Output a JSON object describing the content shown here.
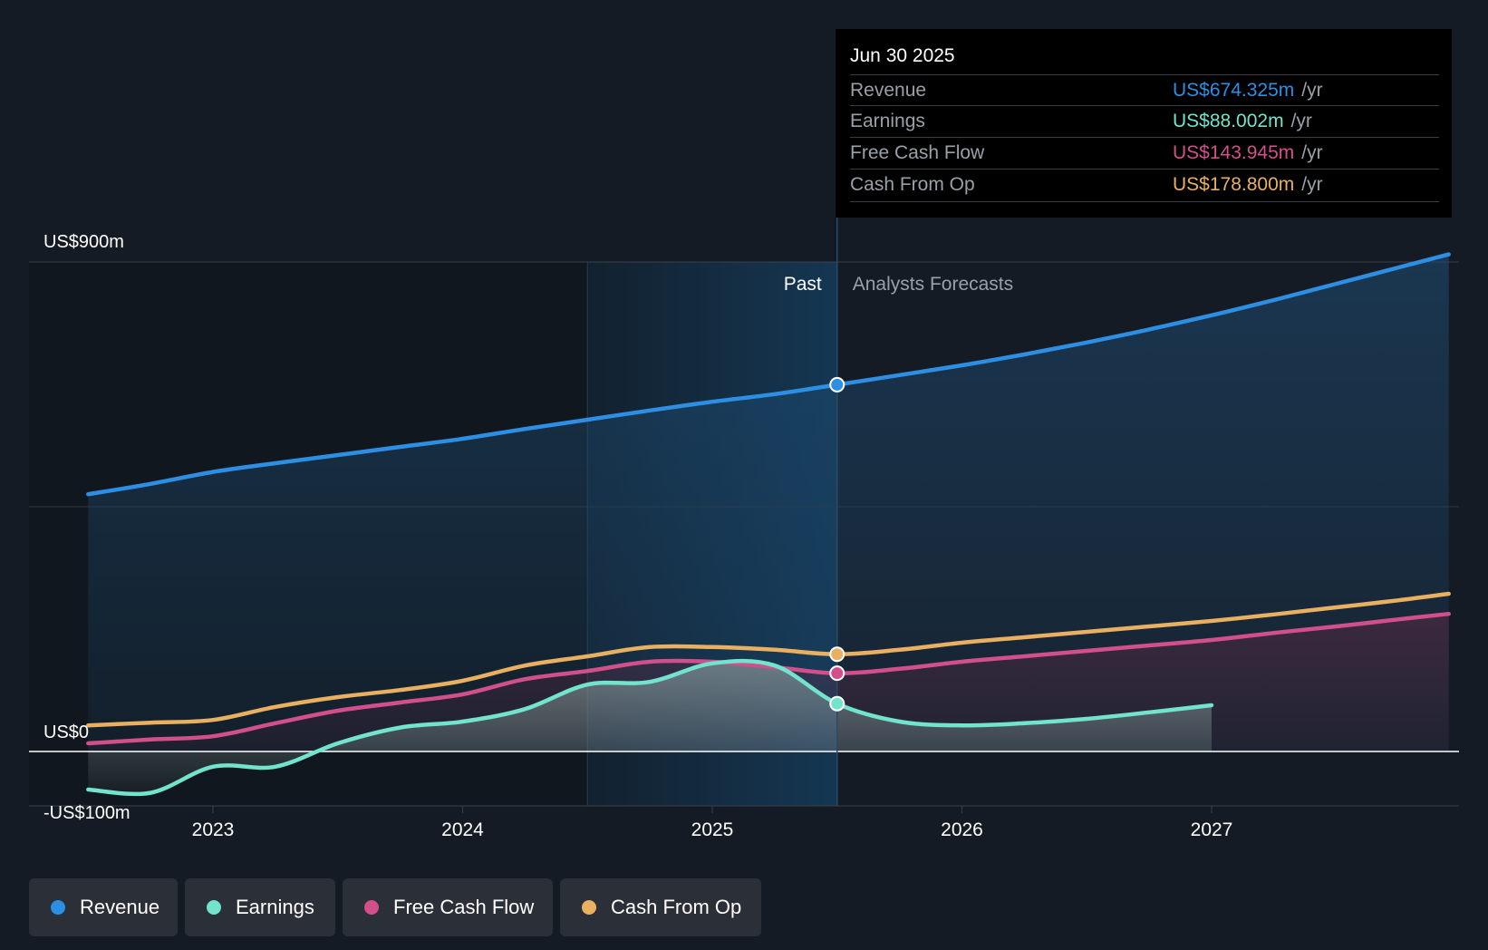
{
  "chart_data": {
    "type": "area",
    "title": "",
    "y_axis_labels": [
      "US$900m",
      "US$0",
      "-US$100m"
    ],
    "ylim": [
      -100,
      900
    ],
    "x_tick_labels": [
      "2023",
      "2024",
      "2025",
      "2026",
      "2027"
    ],
    "divider_date": 2025.5,
    "highlight_range": [
      2024.5,
      2025.5
    ],
    "past_label": "Past",
    "forecast_label": "Analysts Forecasts",
    "series": [
      {
        "name": "Revenue",
        "color": "#2d8fe3",
        "points": [
          [
            2022.5,
            473
          ],
          [
            2022.75,
            492
          ],
          [
            2023.0,
            514
          ],
          [
            2023.25,
            530
          ],
          [
            2023.5,
            545
          ],
          [
            2023.75,
            560
          ],
          [
            2024.0,
            575
          ],
          [
            2024.25,
            593
          ],
          [
            2024.5,
            610
          ],
          [
            2024.75,
            627
          ],
          [
            2025.0,
            643
          ],
          [
            2025.25,
            657
          ],
          [
            2025.5,
            674.3
          ],
          [
            2025.75,
            692
          ],
          [
            2026.0,
            710
          ],
          [
            2026.25,
            730
          ],
          [
            2026.5,
            752
          ],
          [
            2026.75,
            776
          ],
          [
            2027.0,
            802
          ],
          [
            2027.25,
            830
          ],
          [
            2027.5,
            860
          ],
          [
            2027.75,
            890
          ],
          [
            2027.95,
            914
          ]
        ]
      },
      {
        "name": "Earnings",
        "color": "#72e3cc",
        "points": [
          [
            2022.5,
            -70
          ],
          [
            2022.75,
            -76
          ],
          [
            2023.0,
            -28
          ],
          [
            2023.25,
            -28
          ],
          [
            2023.5,
            15
          ],
          [
            2023.75,
            44
          ],
          [
            2024.0,
            55
          ],
          [
            2024.25,
            78
          ],
          [
            2024.5,
            123
          ],
          [
            2024.75,
            128
          ],
          [
            2025.0,
            162
          ],
          [
            2025.25,
            158
          ],
          [
            2025.5,
            88
          ],
          [
            2025.75,
            55
          ],
          [
            2026.0,
            48
          ],
          [
            2026.25,
            52
          ],
          [
            2026.5,
            60
          ],
          [
            2026.75,
            72
          ],
          [
            2027.0,
            85
          ]
        ]
      },
      {
        "name": "Free Cash Flow",
        "color": "#d1508b",
        "points": [
          [
            2022.5,
            15
          ],
          [
            2022.75,
            22
          ],
          [
            2023.0,
            28
          ],
          [
            2023.25,
            52
          ],
          [
            2023.5,
            75
          ],
          [
            2023.75,
            90
          ],
          [
            2024.0,
            105
          ],
          [
            2024.25,
            133
          ],
          [
            2024.5,
            148
          ],
          [
            2024.75,
            165
          ],
          [
            2025.0,
            165
          ],
          [
            2025.25,
            155
          ],
          [
            2025.5,
            143.9
          ],
          [
            2025.75,
            152
          ],
          [
            2026.0,
            165
          ],
          [
            2026.25,
            175
          ],
          [
            2026.5,
            185
          ],
          [
            2026.75,
            195
          ],
          [
            2027.0,
            205
          ],
          [
            2027.25,
            218
          ],
          [
            2027.5,
            230
          ],
          [
            2027.75,
            243
          ],
          [
            2027.95,
            253
          ]
        ]
      },
      {
        "name": "Cash From Op",
        "color": "#e8b060",
        "points": [
          [
            2022.5,
            48
          ],
          [
            2022.75,
            53
          ],
          [
            2023.0,
            58
          ],
          [
            2023.25,
            82
          ],
          [
            2023.5,
            100
          ],
          [
            2023.75,
            113
          ],
          [
            2024.0,
            130
          ],
          [
            2024.25,
            158
          ],
          [
            2024.5,
            175
          ],
          [
            2024.75,
            192
          ],
          [
            2025.0,
            192
          ],
          [
            2025.25,
            187
          ],
          [
            2025.5,
            178.8
          ],
          [
            2025.75,
            187
          ],
          [
            2026.0,
            200
          ],
          [
            2026.25,
            210
          ],
          [
            2026.5,
            220
          ],
          [
            2026.75,
            230
          ],
          [
            2027.0,
            240
          ],
          [
            2027.25,
            252
          ],
          [
            2027.5,
            265
          ],
          [
            2027.75,
            278
          ],
          [
            2027.95,
            290
          ]
        ]
      }
    ]
  },
  "tooltip": {
    "date": "Jun 30 2025",
    "unit": "/yr",
    "rows": [
      {
        "label": "Revenue",
        "value": "US$674.325m",
        "color": "#2d8fe3"
      },
      {
        "label": "Earnings",
        "value": "US$88.002m",
        "color": "#72e3cc"
      },
      {
        "label": "Free Cash Flow",
        "value": "US$143.945m",
        "color": "#d1508b"
      },
      {
        "label": "Cash From Op",
        "value": "US$178.800m",
        "color": "#e8b060"
      }
    ]
  },
  "legend": [
    {
      "label": "Revenue",
      "color": "#2d8fe3"
    },
    {
      "label": "Earnings",
      "color": "#72e3cc"
    },
    {
      "label": "Free Cash Flow",
      "color": "#d1508b"
    },
    {
      "label": "Cash From Op",
      "color": "#e8b060"
    }
  ]
}
